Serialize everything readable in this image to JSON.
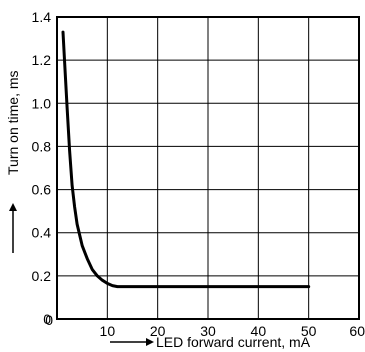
{
  "chart_data": {
    "type": "line",
    "title": "",
    "xlabel": "LED forward current, mA",
    "ylabel": "Turn on time, ms",
    "xlim": [
      0,
      60
    ],
    "ylim": [
      0,
      1.4
    ],
    "x_ticks": [
      "0",
      "10",
      "20",
      "30",
      "40",
      "50",
      "60"
    ],
    "y_ticks": [
      "0",
      "0.2",
      "0.4",
      "0.6",
      "0.8",
      "1.0",
      "1.2",
      "1.4"
    ],
    "grid": true,
    "series": [
      {
        "x": [
          1.2,
          1.5,
          2,
          2.5,
          3,
          3.5,
          4,
          5,
          6,
          7,
          8,
          9,
          10,
          11,
          12,
          13,
          15,
          20,
          30,
          40,
          50
        ],
        "y": [
          1.33,
          1.2,
          0.98,
          0.78,
          0.62,
          0.52,
          0.44,
          0.34,
          0.28,
          0.23,
          0.2,
          0.18,
          0.165,
          0.155,
          0.15,
          0.15,
          0.15,
          0.15,
          0.15,
          0.15,
          0.15
        ]
      }
    ]
  }
}
